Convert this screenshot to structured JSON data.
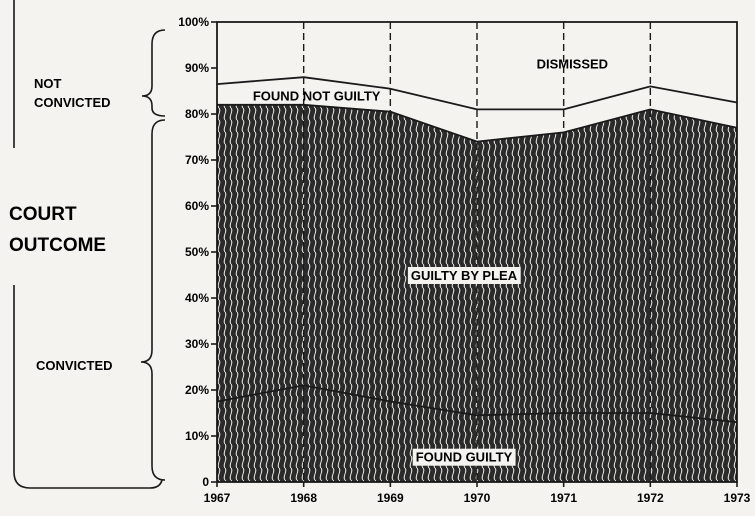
{
  "chart_data": {
    "type": "area",
    "title": "",
    "xlabel": "",
    "ylabel": "COURT OUTCOME",
    "x": [
      1967,
      1968,
      1969,
      1970,
      1971,
      1972,
      1973
    ],
    "x_tick_labels": [
      "1967",
      "1968",
      "1969",
      "1970",
      "1971",
      "1972",
      "1973"
    ],
    "y_tick_labels": [
      "0",
      "10%",
      "20%",
      "30%",
      "40%",
      "50%",
      "60%",
      "70%",
      "80%",
      "90%",
      "100%"
    ],
    "ylim": [
      0,
      100
    ],
    "stacked": true,
    "series": [
      {
        "name": "FOUND GUILTY",
        "values": [
          17.5,
          21,
          17.5,
          14.5,
          15,
          15,
          13
        ],
        "fill": "#2a2a2a",
        "pattern": "wavy"
      },
      {
        "name": "GUILTY BY PLEA",
        "values": [
          64.5,
          61,
          63,
          59.5,
          61,
          66,
          64
        ],
        "fill": "#2a2a2a",
        "pattern": "wavy"
      },
      {
        "name": "FOUND NOT GUILTY",
        "values": [
          4.5,
          6,
          5,
          7,
          5,
          5,
          5.5
        ],
        "fill": "#f4f3ef"
      },
      {
        "name": "DISMISSED",
        "values": [
          13.5,
          12,
          14.5,
          19,
          19,
          14,
          17.5
        ],
        "fill": "#f4f3ef"
      }
    ],
    "groups": [
      {
        "name": "NOT CONVICTED",
        "range": [
          82,
          100
        ]
      },
      {
        "name": "CONVICTED",
        "range": [
          0,
          82
        ]
      }
    ],
    "grid": "vertical",
    "legend": "inline labels"
  },
  "labels": {
    "not_convicted_1": "NOT",
    "not_convicted_2": "CONVICTED",
    "court": "COURT",
    "outcome": "OUTCOME",
    "convicted": "CONVICTED"
  },
  "colors": {
    "ink": "#1a1a1a",
    "paper": "#f4f3ef",
    "hatch": "#2a2a2a"
  }
}
